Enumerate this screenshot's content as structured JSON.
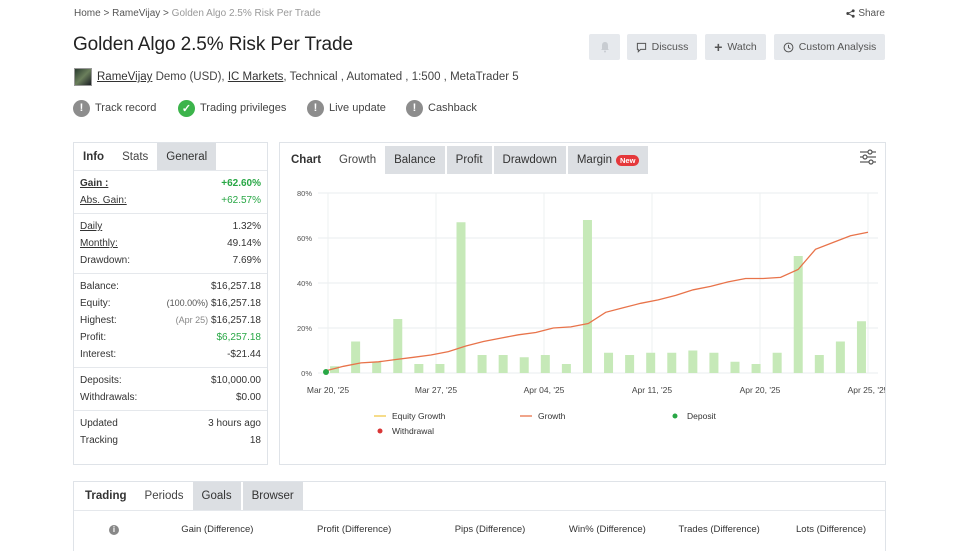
{
  "breadcrumb": {
    "home": "Home",
    "user": "RameVijay",
    "current": "Golden Algo 2.5% Risk Per Trade",
    "sep": ">"
  },
  "share_label": "Share",
  "title": "Golden Algo 2.5% Risk Per Trade",
  "header_buttons": {
    "discuss": "Discuss",
    "watch": "Watch",
    "custom_analysis": "Custom Analysis"
  },
  "meta": {
    "owner": "RameVijay",
    "account": "Demo (USD),",
    "broker": "IC Markets",
    "details": ", Technical , Automated , 1:500 , MetaTrader 5"
  },
  "badges": {
    "track_record": "Track record",
    "trading_privileges": "Trading privileges",
    "live_update": "Live update",
    "cashback": "Cashback"
  },
  "stats_tabs": {
    "info": "Info",
    "stats": "Stats",
    "general": "General"
  },
  "stats": {
    "gain_label": "Gain :",
    "gain_value": "+62.60%",
    "abs_gain_label": "Abs. Gain:",
    "abs_gain_value": "+62.57%",
    "daily_label": "Daily",
    "daily_value": "1.32%",
    "monthly_label": "Monthly:",
    "monthly_value": "49.14%",
    "drawdown_label": "Drawdown:",
    "drawdown_value": "7.69%",
    "balance_label": "Balance:",
    "balance_value": "$16,257.18",
    "equity_label": "Equity:",
    "equity_note": "(100.00%)",
    "equity_value": "$16,257.18",
    "highest_label": "Highest:",
    "highest_note": "(Apr 25)",
    "highest_value": "$16,257.18",
    "profit_label": "Profit:",
    "profit_value": "$6,257.18",
    "interest_label": "Interest:",
    "interest_value": "-$21.44",
    "deposits_label": "Deposits:",
    "deposits_value": "$10,000.00",
    "withdrawals_label": "Withdrawals:",
    "withdrawals_value": "$0.00",
    "updated_label": "Updated",
    "updated_value": "3 hours ago",
    "tracking_label": "Tracking",
    "tracking_value": "18"
  },
  "chart_tabs": {
    "chart": "Chart",
    "growth": "Growth",
    "balance": "Balance",
    "profit": "Profit",
    "drawdown": "Drawdown",
    "margin": "Margin",
    "new_badge": "New"
  },
  "chart_data": {
    "type": "bar",
    "x_ticks": [
      "Mar 20, '25",
      "Mar 27, '25",
      "Apr 04, '25",
      "Apr 11, '25",
      "Apr 20, '25",
      "Apr 25, '25"
    ],
    "y_ticks": [
      "0%",
      "20%",
      "40%",
      "60%",
      "80%"
    ],
    "ylim": [
      0,
      80
    ],
    "bars": [
      3,
      14,
      5,
      24,
      4,
      4,
      67,
      8,
      8,
      7,
      8,
      4,
      68,
      9,
      8,
      9,
      9,
      10,
      9,
      5,
      4,
      9,
      52,
      8,
      14,
      23
    ],
    "growth_line": [
      1,
      3,
      4.5,
      5,
      6,
      7,
      8,
      9.5,
      12,
      14,
      15.5,
      17,
      18,
      20,
      20.5,
      22,
      27,
      29,
      31,
      32.5,
      34.5,
      37,
      38.5,
      40.5,
      42,
      42,
      42.5,
      46,
      55,
      58,
      61,
      62.6
    ],
    "legend": [
      "Equity Growth",
      "Growth",
      "Deposit",
      "Withdrawal"
    ],
    "colors": {
      "bars": "#c6e9b8",
      "growth": "#e8734a",
      "equity": "#f2c94c",
      "deposit": "#28a745",
      "withdrawal": "#d93636"
    }
  },
  "bottom_tabs": {
    "trading": "Trading",
    "periods": "Periods",
    "goals": "Goals",
    "browser": "Browser"
  },
  "bottom_columns": [
    "Gain (Difference)",
    "Profit (Difference)",
    "Pips (Difference)",
    "Win% (Difference)",
    "Trades (Difference)",
    "Lots (Difference)"
  ]
}
